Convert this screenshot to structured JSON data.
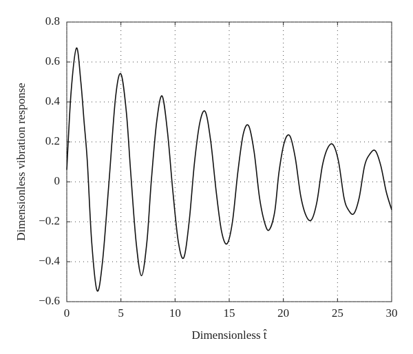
{
  "chart_data": {
    "type": "line",
    "xlabel": "Dimensionless t̂",
    "ylabel": "Dimensionless vibration response",
    "x": [
      0,
      0.4,
      0.9,
      1.3,
      1.6,
      1.9,
      2.3,
      2.8,
      3.3,
      3.9,
      4.5,
      5.0,
      5.5,
      5.9,
      6.4,
      6.9,
      7.4,
      7.8,
      8.3,
      8.8,
      9.3,
      9.8,
      10.3,
      10.8,
      11.3,
      11.8,
      12.3,
      12.8,
      13.3,
      13.8,
      14.3,
      14.8,
      15.3,
      15.8,
      16.3,
      16.8,
      17.3,
      17.8,
      18.3,
      18.7,
      19.2,
      19.6,
      20.1,
      20.6,
      21.1,
      21.6,
      22.1,
      22.6,
      23.1,
      23.6,
      24.1,
      24.6,
      25.1,
      25.6,
      26.0,
      26.5,
      27.0,
      27.5,
      28.0,
      28.5,
      29.0,
      29.5,
      30
    ],
    "series": [
      {
        "color": "#111111",
        "values": [
          0.06,
          0.45,
          0.67,
          0.5,
          0.3,
          0.1,
          -0.3,
          -0.545,
          -0.4,
          0,
          0.42,
          0.54,
          0.35,
          0.05,
          -0.3,
          -0.47,
          -0.3,
          0,
          0.3,
          0.43,
          0.25,
          -0.05,
          -0.3,
          -0.38,
          -0.2,
          0.1,
          0.3,
          0.35,
          0.2,
          -0.05,
          -0.25,
          -0.31,
          -0.2,
          0.05,
          0.24,
          0.28,
          0.15,
          -0.08,
          -0.21,
          -0.24,
          -0.15,
          0.05,
          0.2,
          0.23,
          0.12,
          -0.07,
          -0.17,
          -0.19,
          -0.1,
          0.08,
          0.17,
          0.185,
          0.1,
          -0.08,
          -0.14,
          -0.16,
          -0.08,
          0.08,
          0.14,
          0.155,
          0.08,
          -0.05,
          -0.14
        ]
      }
    ],
    "xlim": [
      0,
      30
    ],
    "xticks": [
      0,
      5,
      10,
      15,
      20,
      25,
      30
    ],
    "ylim": [
      -0.6,
      0.8
    ],
    "yticks": [
      {
        "value": -0.6,
        "label": "−0.6"
      },
      {
        "value": -0.4,
        "label": "−0.4"
      },
      {
        "value": -0.2,
        "label": "−0.2"
      },
      0,
      0.2,
      0.4,
      0.6,
      0.8
    ],
    "grid": true
  }
}
